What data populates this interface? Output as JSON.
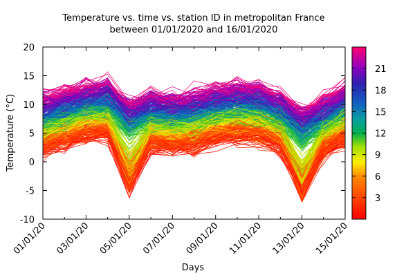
{
  "chart_data": {
    "type": "line",
    "title": "Temperature vs. time vs. station ID in metropolitan France",
    "subtitle": "between 01/01/2020 and 16/01/2020",
    "xlabel": "Days",
    "ylabel": "Temperature (°C)",
    "xlim": [
      "01/01/20",
      "15/01/20"
    ],
    "ylim": [
      -10,
      20
    ],
    "x_tick_labels": [
      "01/01/20",
      "03/01/20",
      "05/01/20",
      "07/01/20",
      "09/01/20",
      "11/01/20",
      "13/01/20",
      "15/01/20"
    ],
    "y_tick_labels": [
      "20",
      "15",
      "10",
      "5",
      "0",
      "-5",
      "-10"
    ],
    "y_ticks": [
      20,
      15,
      10,
      5,
      0,
      -5,
      -10
    ],
    "colorbar": {
      "range": [
        0,
        24
      ],
      "tick_labels": [
        "21",
        "18",
        "15",
        "12",
        "9",
        "6",
        "3"
      ],
      "ticks": [
        21,
        18,
        15,
        12,
        9,
        6,
        3
      ],
      "colormap": "rainbow-red-to-magenta"
    },
    "grid": false,
    "legend": "none",
    "series_count": 1000
  }
}
